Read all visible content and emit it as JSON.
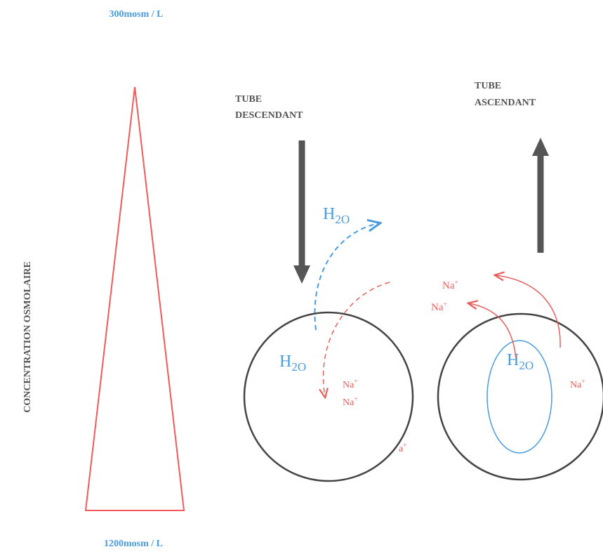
{
  "top_label": "300mosm  / L",
  "bottom_label": "1200mosm  / L",
  "axis_label": "CONCENTRATION OSMOLAIRE",
  "descending": {
    "line1": "TUBE",
    "line2": "DESCENDANT",
    "water_top": {
      "base": "H",
      "sub": "2O"
    },
    "water_inner": {
      "base": "H",
      "sub": "2O"
    },
    "ions": [
      {
        "base": "Na",
        "sup": "+"
      },
      {
        "base": "Na",
        "sup": "+"
      }
    ],
    "stray": {
      "base": "a",
      "sup": "+"
    }
  },
  "ascending": {
    "line1": "TUBE",
    "line2": "ASCENDANT",
    "water_inner": {
      "base": "H",
      "sub": "2O"
    },
    "ions": [
      {
        "base": "Na",
        "sup": "+"
      },
      {
        "base": "Na",
        "sup": "+"
      },
      {
        "base": "Na",
        "sup": "+"
      }
    ]
  }
}
